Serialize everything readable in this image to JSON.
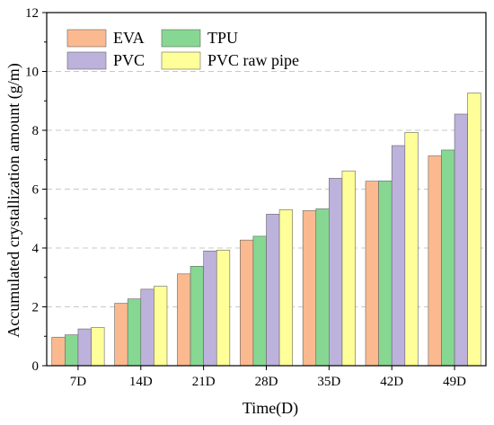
{
  "chart_data": {
    "type": "bar",
    "title": "",
    "xlabel": "Time(D)",
    "ylabel": "Accumulated crystallization amount (g/m)",
    "ylim": [
      0,
      12
    ],
    "yticks": [
      "0",
      "2",
      "4",
      "6",
      "8",
      "10",
      "12"
    ],
    "categories": [
      "7D",
      "14D",
      "21D",
      "28D",
      "35D",
      "42D",
      "49D"
    ],
    "series": [
      {
        "name": "EVA",
        "color": "#fbb98f",
        "values": [
          0.97,
          2.12,
          3.12,
          4.27,
          5.27,
          6.27,
          7.13
        ]
      },
      {
        "name": "TPU",
        "color": "#86d792",
        "values": [
          1.05,
          2.27,
          3.38,
          4.4,
          5.33,
          6.28,
          7.33
        ]
      },
      {
        "name": "PVC",
        "color": "#bdb2dc",
        "values": [
          1.25,
          2.6,
          3.9,
          5.15,
          6.37,
          7.48,
          8.55
        ]
      },
      {
        "name": "PVC raw pipe",
        "color": "#ffff99",
        "values": [
          1.3,
          2.7,
          3.93,
          5.3,
          6.62,
          7.93,
          9.27
        ]
      }
    ],
    "legend_position": "top-left",
    "grid": "horizontal-dashed"
  }
}
